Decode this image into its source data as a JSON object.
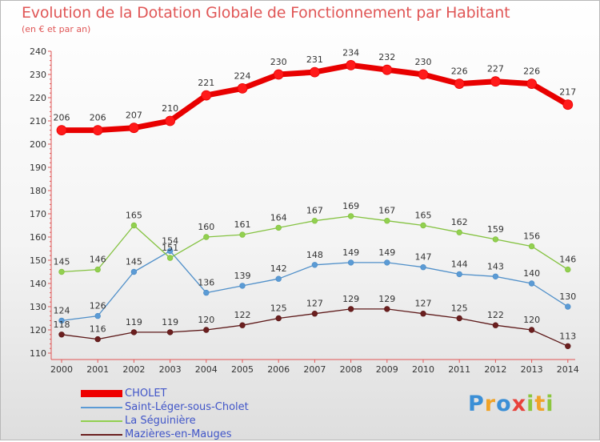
{
  "chart_data": {
    "type": "line",
    "title": "Evolution de la Dotation Globale de Fonctionnement par Habitant",
    "subtitle": "(en € et par an)",
    "x": [
      "2000",
      "2001",
      "2002",
      "2003",
      "2004",
      "2005",
      "2006",
      "2007",
      "2008",
      "2009",
      "2010",
      "2011",
      "2012",
      "2013",
      "2014"
    ],
    "y_ticks": [
      110,
      120,
      130,
      140,
      150,
      160,
      170,
      180,
      190,
      200,
      210,
      220,
      230,
      240
    ],
    "ylim": [
      110,
      240
    ],
    "grid": false,
    "legend_position": "bottom-left",
    "series": [
      {
        "name": "CHOLET",
        "color": "#ee0000",
        "values": [
          206,
          206,
          207,
          210,
          221,
          224,
          230,
          231,
          234,
          232,
          230,
          226,
          227,
          226,
          217
        ]
      },
      {
        "name": "Saint-Léger-sous-Cholet",
        "color": "#5b9bd5",
        "values": [
          124,
          126,
          145,
          154,
          136,
          139,
          142,
          148,
          149,
          149,
          147,
          144,
          143,
          140,
          130
        ]
      },
      {
        "name": "La Séguinière",
        "color": "#92d050",
        "values": [
          145,
          146,
          165,
          151,
          160,
          161,
          164,
          167,
          169,
          167,
          165,
          162,
          159,
          156,
          146
        ]
      },
      {
        "name": "Mazières-en-Mauges",
        "color": "#6b1f1f",
        "values": [
          118,
          116,
          119,
          119,
          120,
          122,
          125,
          127,
          129,
          129,
          127,
          125,
          122,
          120,
          113
        ]
      }
    ],
    "data_labels": [
      [
        "206",
        "206",
        "207",
        "210",
        "221",
        "224",
        "230",
        "231",
        "234",
        "232",
        "230",
        "226",
        "227",
        "226",
        "217"
      ],
      [
        "124",
        "126",
        "145",
        "154",
        "136",
        "139",
        "142",
        "148",
        "149",
        "149",
        "147",
        "144",
        "143",
        "140",
        "130"
      ],
      [
        "145",
        "146",
        "165",
        "151",
        "160",
        "161",
        "164",
        "167",
        "169",
        "167",
        "165",
        "162",
        "159",
        "156",
        "146"
      ],
      [
        "118",
        "116",
        "119",
        "119",
        "120",
        "122",
        "125",
        "127",
        "129",
        "129",
        "127",
        "125",
        "122",
        "120",
        "113"
      ]
    ]
  },
  "legend": {
    "items": [
      "CHOLET",
      "Saint-Léger-sous-Cholet",
      "La Séguinière",
      "Mazières-en-Mauges"
    ]
  },
  "brand": {
    "logo_text": "Proxiti"
  }
}
